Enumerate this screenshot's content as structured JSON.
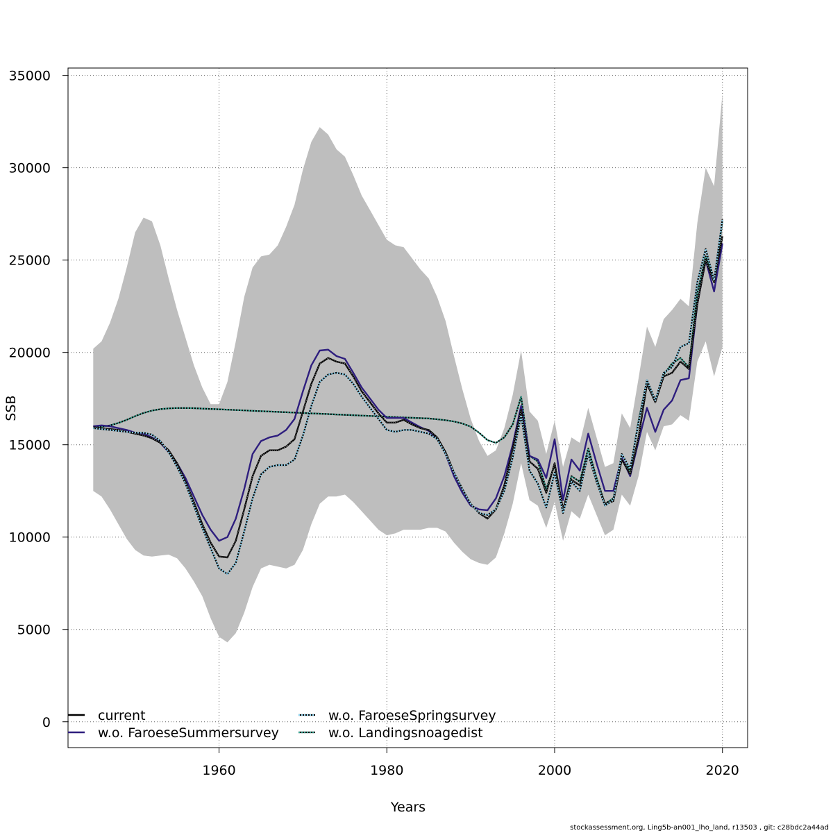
{
  "chart_data": {
    "type": "line",
    "xlabel": "Years",
    "ylabel": "SSB",
    "xlim": [
      1942,
      2023
    ],
    "ylim": [
      -1400,
      35400
    ],
    "x_ticks": [
      1960,
      1980,
      2000,
      2020
    ],
    "y_ticks": [
      0,
      5000,
      10000,
      15000,
      20000,
      25000,
      30000,
      35000
    ],
    "grid": true,
    "legend_position": "bottom-left",
    "x": [
      1945,
      1946,
      1947,
      1948,
      1949,
      1950,
      1951,
      1952,
      1953,
      1954,
      1955,
      1956,
      1957,
      1958,
      1959,
      1960,
      1961,
      1962,
      1963,
      1964,
      1965,
      1966,
      1967,
      1968,
      1969,
      1970,
      1971,
      1972,
      1973,
      1974,
      1975,
      1976,
      1977,
      1978,
      1979,
      1980,
      1981,
      1982,
      1983,
      1984,
      1985,
      1986,
      1987,
      1988,
      1989,
      1990,
      1991,
      1992,
      1993,
      1994,
      1995,
      1996,
      1997,
      1998,
      1999,
      2000,
      2001,
      2002,
      2003,
      2004,
      2005,
      2006,
      2007,
      2008,
      2009,
      2010,
      2011,
      2012,
      2013,
      2014,
      2015,
      2016,
      2017,
      2018,
      2019,
      2020
    ],
    "confidence_band": {
      "color": "#bebebe",
      "upper": [
        20200,
        20600,
        21600,
        22900,
        24600,
        26500,
        27300,
        27100,
        25800,
        24000,
        22300,
        20800,
        19300,
        18100,
        17200,
        17200,
        18400,
        20600,
        23000,
        24600,
        25200,
        25300,
        25800,
        26800,
        28000,
        29900,
        31400,
        32200,
        31800,
        31000,
        30600,
        29600,
        28500,
        27700,
        26900,
        26100,
        25800,
        25700,
        25100,
        24500,
        24000,
        23000,
        21700,
        19800,
        18000,
        16400,
        15200,
        14400,
        14700,
        15900,
        17700,
        20100,
        16800,
        16300,
        14500,
        16300,
        13800,
        15400,
        15100,
        17000,
        15400,
        13800,
        14000,
        16700,
        15900,
        18600,
        21400,
        20300,
        21800,
        22300,
        22900,
        22500,
        27000,
        30000,
        29000,
        34000
      ],
      "lower": [
        12500,
        12200,
        11500,
        10700,
        9900,
        9300,
        9000,
        8950,
        9000,
        9050,
        8850,
        8300,
        7600,
        6800,
        5600,
        4600,
        4300,
        4800,
        5900,
        7300,
        8300,
        8500,
        8400,
        8300,
        8500,
        9300,
        10700,
        11800,
        12200,
        12200,
        12300,
        11900,
        11400,
        10900,
        10400,
        10100,
        10200,
        10400,
        10400,
        10400,
        10500,
        10500,
        10300,
        9700,
        9200,
        8800,
        8600,
        8500,
        8900,
        10200,
        11800,
        14000,
        12000,
        11700,
        10500,
        11900,
        9800,
        11400,
        11000,
        12300,
        11200,
        10100,
        10400,
        12300,
        11700,
        13300,
        15700,
        14700,
        16000,
        16100,
        16600,
        16300,
        19500,
        20600,
        18700,
        20300
      ]
    },
    "series": [
      {
        "name": "current",
        "color": "#000000",
        "values": [
          15950,
          15900,
          15850,
          15800,
          15700,
          15600,
          15500,
          15350,
          15100,
          14700,
          14000,
          13000,
          11900,
          10700,
          9700,
          8950,
          8900,
          9800,
          11500,
          13300,
          14400,
          14700,
          14700,
          14900,
          15300,
          16800,
          18300,
          19400,
          19700,
          19500,
          19400,
          18700,
          17900,
          17300,
          16700,
          16200,
          16200,
          16350,
          16100,
          15900,
          15800,
          15400,
          14600,
          13500,
          12600,
          11800,
          11300,
          11000,
          11500,
          12800,
          14800,
          16900,
          14100,
          13700,
          12400,
          14000,
          11500,
          13100,
          12800,
          14500,
          13000,
          11800,
          11950,
          14200,
          13400,
          15400,
          18300,
          17300,
          18700,
          18900,
          19500,
          19100,
          22600,
          25000,
          23800,
          26300
        ]
      },
      {
        "name": "w.o. FaroeseSummersurvey",
        "color": "#2e1e7e",
        "values": [
          16000,
          16050,
          16000,
          15900,
          15800,
          15650,
          15600,
          15400,
          15100,
          14600,
          14000,
          13200,
          12200,
          11200,
          10400,
          9800,
          10000,
          11000,
          12600,
          14500,
          15200,
          15400,
          15500,
          15800,
          16400,
          17900,
          19300,
          20100,
          20150,
          19800,
          19650,
          18900,
          18100,
          17500,
          16900,
          16450,
          16450,
          16450,
          16200,
          15950,
          15750,
          15350,
          14500,
          13300,
          12400,
          11700,
          11500,
          11450,
          12100,
          13300,
          15000,
          17100,
          14400,
          14200,
          13200,
          15300,
          12000,
          14200,
          13600,
          15600,
          14000,
          12500,
          12500,
          14300,
          13300,
          15200,
          17000,
          15700,
          16900,
          17400,
          18500,
          18600,
          22600,
          25000,
          23300,
          25900
        ]
      },
      {
        "name": "w.o. FaroeseSpringsurvey",
        "color": "#87ceeb",
        "dashed": true,
        "values": [
          15900,
          15850,
          15800,
          15750,
          15700,
          15650,
          15650,
          15550,
          15200,
          14600,
          13800,
          12900,
          11700,
          10500,
          9400,
          8300,
          8000,
          8600,
          10300,
          12100,
          13400,
          13800,
          13900,
          13900,
          14200,
          15500,
          17100,
          18400,
          18800,
          18900,
          18800,
          18300,
          17600,
          17000,
          16400,
          15800,
          15700,
          15800,
          15800,
          15700,
          15600,
          15300,
          14500,
          13500,
          12600,
          11800,
          11300,
          11200,
          11500,
          12500,
          14300,
          16600,
          13600,
          12900,
          11600,
          13500,
          11300,
          13000,
          12500,
          14500,
          13000,
          11700,
          12000,
          14500,
          13700,
          16200,
          18500,
          17400,
          18900,
          19200,
          20300,
          20500,
          23800,
          25600,
          23900,
          27200
        ]
      },
      {
        "name": "w.o. Landingsnoagedist",
        "color": "#3ea796",
        "dashed": true,
        "values": [
          15900,
          15980,
          16050,
          16180,
          16350,
          16550,
          16720,
          16850,
          16930,
          16970,
          16990,
          16990,
          16980,
          16960,
          16940,
          16920,
          16900,
          16880,
          16860,
          16840,
          16820,
          16800,
          16780,
          16760,
          16740,
          16720,
          16700,
          16680,
          16660,
          16640,
          16620,
          16600,
          16580,
          16560,
          16540,
          16520,
          16500,
          16480,
          16460,
          16440,
          16420,
          16380,
          16330,
          16260,
          16150,
          15980,
          15650,
          15250,
          15100,
          15400,
          16100,
          17600,
          14400,
          14100,
          12600,
          13900,
          11400,
          13300,
          13000,
          14800,
          13200,
          11800,
          12100,
          14200,
          13600,
          16300,
          18500,
          17400,
          18800,
          19400,
          19700,
          19200,
          23200,
          25200,
          23800,
          27100
        ]
      }
    ]
  },
  "footer": "stockassessment.org, Ling5b-an001_lho_land, r13503 , git: c28bdc2a44ad"
}
